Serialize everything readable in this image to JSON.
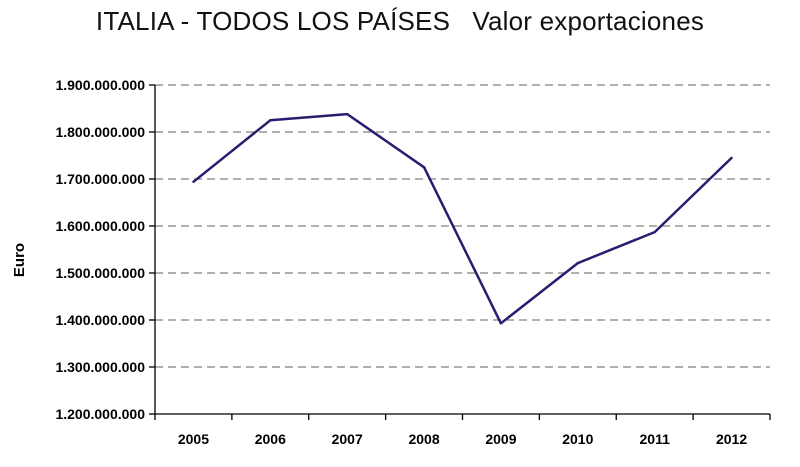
{
  "title": "ITALIA - TODOS LOS PAÍSES   Valor exportaciones",
  "chart_data": {
    "type": "line",
    "title": "ITALIA - TODOS LOS PAÍSES   Valor exportaciones",
    "xlabel": "",
    "ylabel": "Euro",
    "categories": [
      "2005",
      "2006",
      "2007",
      "2008",
      "2009",
      "2010",
      "2011",
      "2012"
    ],
    "series": [
      {
        "values": [
          1694000000,
          1825000000,
          1838000000,
          1725000000,
          1393000000,
          1521000000,
          1587000000,
          1745000000
        ],
        "color": "#2e1a6e"
      }
    ],
    "ylim": [
      1200000000,
      1900000000
    ],
    "yticks": [
      1200000000,
      1300000000,
      1400000000,
      1500000000,
      1600000000,
      1700000000,
      1800000000,
      1900000000
    ],
    "ytick_labels": [
      "1.200.000.000",
      "1.300.000.000",
      "1.400.000.000",
      "1.500.000.000",
      "1.600.000.000",
      "1.700.000.000",
      "1.800.000.000",
      "1.900.000.000"
    ],
    "grid": "horizontal-dashed",
    "legend": "none"
  }
}
